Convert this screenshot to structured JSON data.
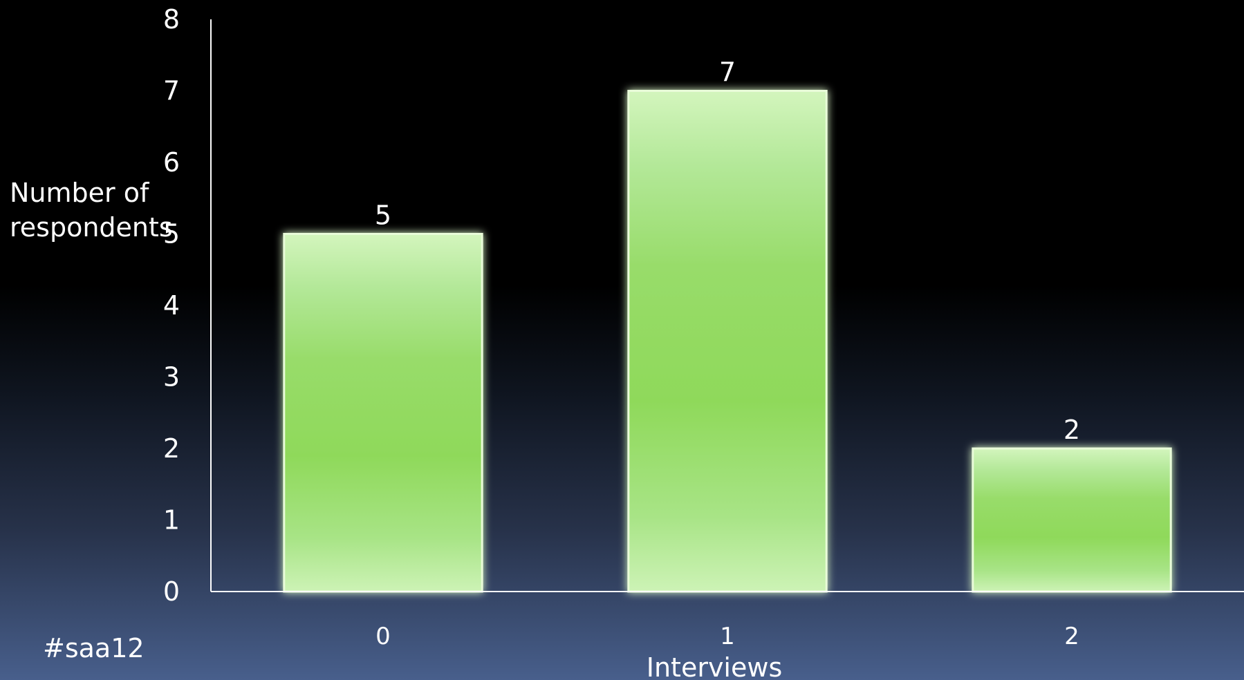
{
  "chart_data": {
    "type": "bar",
    "categories": [
      "0",
      "1",
      "2"
    ],
    "values": [
      5,
      7,
      2
    ],
    "data_labels": [
      "5",
      "7",
      "2"
    ],
    "title": "",
    "xlabel": "Interviews",
    "ylabel_lines": [
      "Number of",
      "respondents"
    ],
    "ylim": [
      0,
      8
    ],
    "yticks": [
      "0",
      "1",
      "2",
      "3",
      "4",
      "5",
      "6",
      "7",
      "8"
    ],
    "grid": false,
    "bar_color": "#8fd95a",
    "bar_highlight": "#d3f5bd"
  },
  "footer": {
    "tag": "#saa12"
  }
}
